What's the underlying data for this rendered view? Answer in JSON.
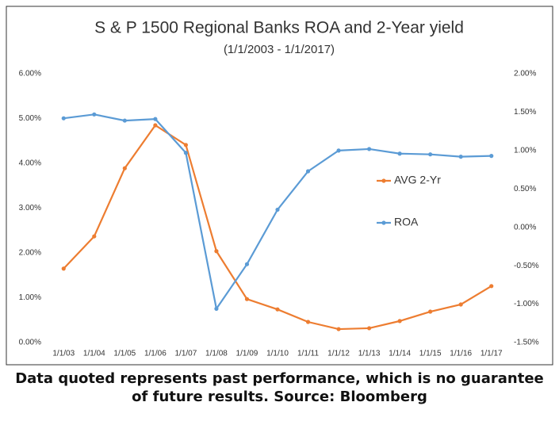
{
  "chart_data": {
    "type": "line",
    "title": "S & P 1500 Regional Banks ROA and 2-Year yield",
    "subtitle": "(1/1/2003  -  1/1/2017)",
    "categories": [
      "1/1/03",
      "1/1/04",
      "1/1/05",
      "1/1/06",
      "1/1/07",
      "1/1/08",
      "1/1/09",
      "1/1/10",
      "1/1/11",
      "1/1/12",
      "1/1/13",
      "1/1/14",
      "1/1/15",
      "1/1/16",
      "1/1/17"
    ],
    "series": [
      {
        "name": "AVG 2-Yr",
        "color": "#ed7d31",
        "values": [
          1.65,
          2.37,
          3.89,
          4.85,
          4.41,
          2.04,
          0.97,
          0.74,
          0.46,
          0.3,
          0.32,
          0.48,
          0.69,
          0.85,
          1.26
        ]
      },
      {
        "name": "ROA",
        "color": "#5b9bd5",
        "axis": "y2",
        "values": [
          1.42,
          1.47,
          1.39,
          1.41,
          0.97,
          -1.06,
          -0.48,
          0.23,
          0.73,
          1.0,
          1.02,
          0.96,
          0.95,
          0.92,
          0.93
        ]
      }
    ],
    "ylim": [
      0,
      6
    ],
    "yticks": [
      {
        "value": 0,
        "label": "0.00%"
      },
      {
        "value": 1,
        "label": "1.00%"
      },
      {
        "value": 2,
        "label": "2.00%"
      },
      {
        "value": 3,
        "label": "3.00%"
      },
      {
        "value": 4,
        "label": "4.00%"
      },
      {
        "value": 5,
        "label": "5.00%"
      },
      {
        "value": 6,
        "label": "6.00%"
      }
    ],
    "y2lim": [
      -1.5,
      2
    ],
    "y2ticks": [
      {
        "value": -1.5,
        "label": "-1.50%"
      },
      {
        "value": -1,
        "label": "-1.00%"
      },
      {
        "value": -0.5,
        "label": "-0.50%"
      },
      {
        "value": 0,
        "label": "0.00%"
      },
      {
        "value": 0.5,
        "label": "0.50%"
      },
      {
        "value": 1,
        "label": "1.00%"
      },
      {
        "value": 1.5,
        "label": "1.50%"
      },
      {
        "value": 2,
        "label": "2.00%"
      }
    ],
    "grid": false,
    "legend": "right",
    "footnote": "Data quoted represents past performance, which is no guarantee of future results. Source: Bloomberg"
  }
}
